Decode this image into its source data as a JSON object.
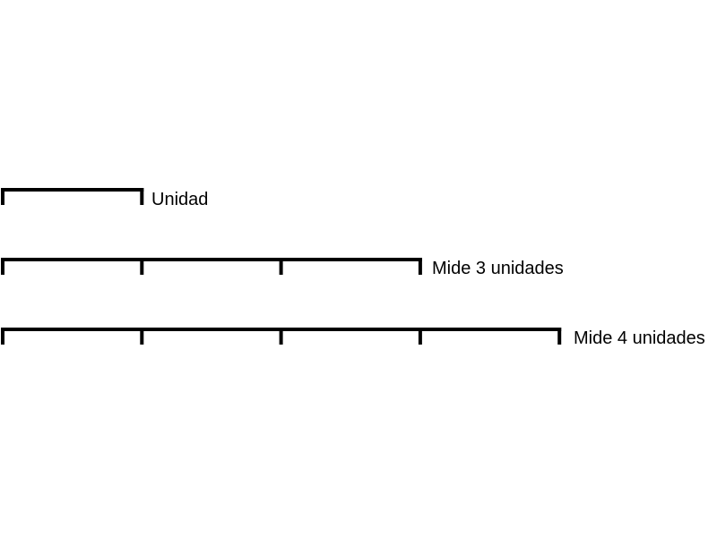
{
  "diagram": {
    "line_color": "#000000",
    "segments": [
      {
        "units": 1,
        "label": "Unidad"
      },
      {
        "units": 3,
        "label": "Mide 3 unidades"
      },
      {
        "units": 4,
        "label": "Mide 4 unidades"
      }
    ]
  }
}
